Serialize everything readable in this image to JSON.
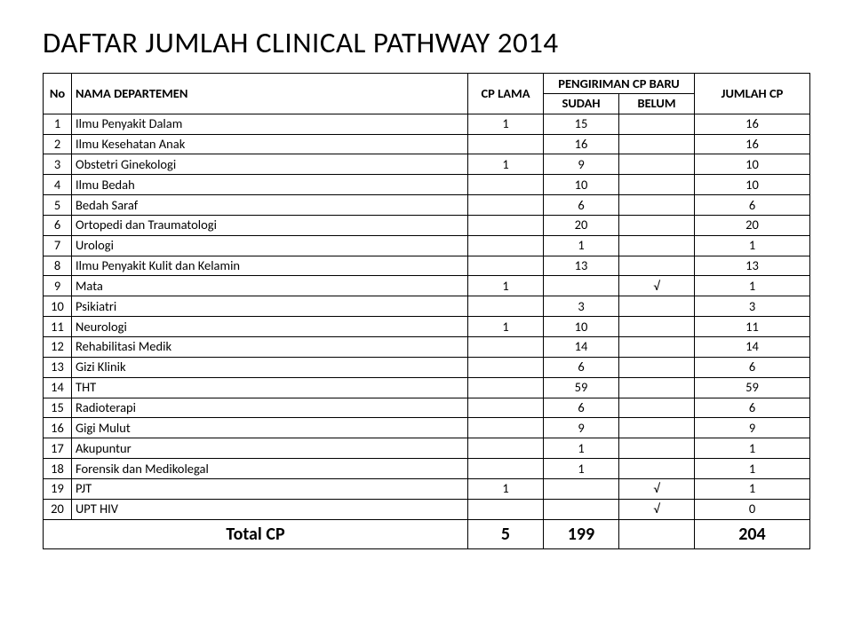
{
  "title": "DAFTAR JUMLAH CLINICAL PATHWAY 2014",
  "headers": {
    "no": "No",
    "dept": "NAMA DEPARTEMEN",
    "cp_lama": "CP LAMA",
    "pengiriman": "PENGIRIMAN CP BARU",
    "sudah": "SUDAH",
    "belum": "BELUM",
    "jumlah": "JUMLAH CP"
  },
  "rows": [
    {
      "no": "1",
      "dept": "Ilmu Penyakit Dalam",
      "lama": "1",
      "sudah": "15",
      "belum": "",
      "jml": "16"
    },
    {
      "no": "2",
      "dept": "Ilmu Kesehatan Anak",
      "lama": "",
      "sudah": "16",
      "belum": "",
      "jml": "16"
    },
    {
      "no": "3",
      "dept": "Obstetri Ginekologi",
      "lama": "1",
      "sudah": "9",
      "belum": "",
      "jml": "10"
    },
    {
      "no": "4",
      "dept": "Ilmu Bedah",
      "lama": "",
      "sudah": "10",
      "belum": "",
      "jml": "10"
    },
    {
      "no": "5",
      "dept": "Bedah Saraf",
      "lama": "",
      "sudah": "6",
      "belum": "",
      "jml": "6"
    },
    {
      "no": "6",
      "dept": "Ortopedi dan Traumatologi",
      "lama": "",
      "sudah": "20",
      "belum": "",
      "jml": "20"
    },
    {
      "no": "7",
      "dept": "Urologi",
      "lama": "",
      "sudah": "1",
      "belum": "",
      "jml": "1"
    },
    {
      "no": "8",
      "dept": "Ilmu Penyakit Kulit dan Kelamin",
      "lama": "",
      "sudah": "13",
      "belum": "",
      "jml": "13"
    },
    {
      "no": "9",
      "dept": "Mata",
      "lama": "1",
      "sudah": "",
      "belum": "√",
      "jml": "1"
    },
    {
      "no": "10",
      "dept": "Psikiatri",
      "lama": "",
      "sudah": "3",
      "belum": "",
      "jml": "3"
    },
    {
      "no": "11",
      "dept": "Neurologi",
      "lama": "1",
      "sudah": "10",
      "belum": "",
      "jml": "11"
    },
    {
      "no": "12",
      "dept": "Rehabilitasi Medik",
      "lama": "",
      "sudah": "14",
      "belum": "",
      "jml": "14"
    },
    {
      "no": "13",
      "dept": "Gizi Klinik",
      "lama": "",
      "sudah": "6",
      "belum": "",
      "jml": "6"
    },
    {
      "no": "14",
      "dept": "THT",
      "lama": "",
      "sudah": "59",
      "belum": "",
      "jml": "59"
    },
    {
      "no": "15",
      "dept": "Radioterapi",
      "lama": "",
      "sudah": "6",
      "belum": "",
      "jml": "6"
    },
    {
      "no": "16",
      "dept": "Gigi Mulut",
      "lama": "",
      "sudah": "9",
      "belum": "",
      "jml": "9"
    },
    {
      "no": "17",
      "dept": "Akupuntur",
      "lama": "",
      "sudah": "1",
      "belum": "",
      "jml": "1"
    },
    {
      "no": "18",
      "dept": "Forensik dan Medikolegal",
      "lama": "",
      "sudah": "1",
      "belum": "",
      "jml": "1"
    },
    {
      "no": "19",
      "dept": "PJT",
      "lama": "1",
      "sudah": "",
      "belum": "√",
      "jml": "1"
    },
    {
      "no": "20",
      "dept": "UPT HIV",
      "lama": "",
      "sudah": "",
      "belum": "√",
      "jml": "0"
    }
  ],
  "total": {
    "label": "Total CP",
    "lama": "5",
    "sudah": "199",
    "belum": "",
    "jml": "204"
  }
}
